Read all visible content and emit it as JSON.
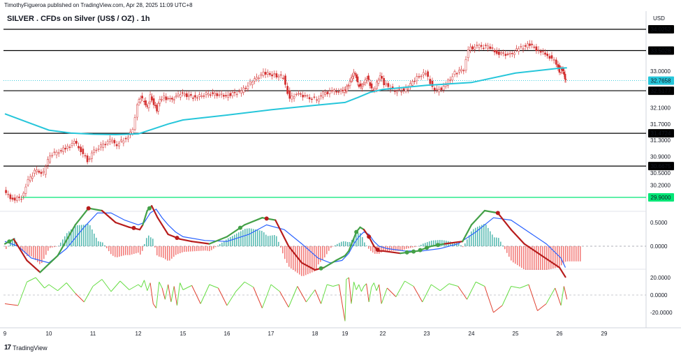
{
  "header": {
    "published": "TimothyFigueroa published on TradingView.com, Apr 28, 2025 11:09 UTC+8",
    "title": "SILVER . CFDs on Silver (US$ / OZ) . 1h",
    "currency": "USD"
  },
  "footer": {
    "brand": "TradingView",
    "brand_glyph": "17"
  },
  "colors": {
    "candle": "#d32f2f",
    "sma": "#26c6da",
    "level": "#000000",
    "support_green": "#00e676",
    "wt_green": "#43a047",
    "wt_red": "#b71c1c",
    "wt_blue": "#2962ff",
    "hist_up": "#26a69a",
    "hist_down": "#ef5350",
    "osc_green": "#66dd44",
    "osc_red": "#e04030"
  },
  "chart_data": [
    {
      "type": "line",
      "panel": "price",
      "title": "SILVER . CFDs on Silver (US$ / OZ) . 1h",
      "ylabel": "USD",
      "x_ticks": [
        "9",
        "10",
        "11",
        "12",
        "15",
        "16",
        "17",
        "18",
        "19",
        "22",
        "23",
        "24",
        "25",
        "26",
        "29"
      ],
      "y_ticks": [
        "33.0000",
        "32.1000",
        "31.7000",
        "31.3000",
        "30.9000",
        "30.5000",
        "30.2000"
      ],
      "ylim": [
        29.7,
        34.3
      ],
      "levels": [
        {
          "label": "34.0252",
          "value": 34.0252,
          "color": "#000000"
        },
        {
          "label": "33.5028",
          "value": 33.5028,
          "color": "#000000"
        },
        {
          "label": "32.5177",
          "value": 32.5177,
          "color": "#000000"
        },
        {
          "label": "31.4724",
          "value": 31.4724,
          "color": "#000000"
        },
        {
          "label": "30.6675",
          "value": 30.6675,
          "color": "#000000"
        },
        {
          "label": "29.9000",
          "value": 29.9,
          "color": "#00e676"
        }
      ],
      "last_price": {
        "label": "32.7658",
        "value": 32.7658
      },
      "price_path": [
        [
          9.0,
          30.05
        ],
        [
          9.2,
          29.85
        ],
        [
          9.4,
          29.9
        ],
        [
          9.55,
          30.3
        ],
        [
          9.7,
          30.55
        ],
        [
          9.9,
          30.5
        ],
        [
          10.05,
          30.95
        ],
        [
          10.2,
          31.0
        ],
        [
          10.4,
          31.1
        ],
        [
          10.6,
          31.25
        ],
        [
          10.75,
          31.05
        ],
        [
          10.9,
          30.8
        ],
        [
          11.05,
          31.05
        ],
        [
          11.2,
          31.15
        ],
        [
          11.4,
          31.3
        ],
        [
          11.55,
          31.2
        ],
        [
          11.75,
          31.35
        ],
        [
          11.9,
          31.55
        ],
        [
          12.0,
          32.2
        ],
        [
          12.2,
          32.35
        ],
        [
          12.45,
          32.25
        ],
        [
          12.65,
          32.1
        ],
        [
          12.85,
          32.4
        ],
        [
          13.1,
          32.2
        ],
        [
          13.3,
          32.05
        ],
        [
          13.5,
          32.3
        ],
        [
          13.8,
          32.35
        ],
        [
          14.2,
          32.3
        ],
        [
          14.6,
          32.35
        ],
        [
          14.9,
          32.45
        ],
        [
          15.3,
          32.35
        ],
        [
          15.6,
          32.45
        ],
        [
          16.0,
          32.4
        ],
        [
          16.35,
          32.5
        ],
        [
          16.6,
          32.75
        ],
        [
          16.85,
          32.95
        ],
        [
          17.1,
          32.9
        ],
        [
          17.3,
          32.85
        ],
        [
          17.45,
          32.3
        ],
        [
          17.6,
          32.45
        ],
        [
          17.9,
          32.35
        ],
        [
          18.1,
          32.3
        ],
        [
          18.3,
          32.45
        ],
        [
          18.6,
          32.5
        ],
        [
          18.9,
          32.5
        ],
        [
          19.0,
          32.5
        ],
        [
          19.2,
          32.6
        ],
        [
          19.45,
          32.75
        ],
        [
          19.65,
          32.9
        ],
        [
          19.85,
          32.95
        ],
        [
          20.05,
          32.7
        ],
        [
          20.3,
          32.6
        ],
        [
          20.55,
          32.7
        ],
        [
          20.8,
          32.85
        ],
        [
          21.05,
          32.65
        ],
        [
          21.3,
          32.5
        ],
        [
          21.6,
          32.7
        ],
        [
          21.85,
          32.9
        ],
        [
          22.05,
          32.7
        ],
        [
          22.3,
          32.5
        ],
        [
          22.55,
          32.55
        ],
        [
          22.8,
          32.85
        ],
        [
          23.0,
          32.95
        ],
        [
          23.2,
          32.5
        ],
        [
          23.4,
          32.6
        ],
        [
          23.65,
          32.95
        ],
        [
          23.85,
          33.05
        ],
        [
          23.95,
          33.55
        ],
        [
          24.15,
          33.6
        ],
        [
          24.4,
          33.6
        ],
        [
          24.6,
          33.45
        ],
        [
          24.9,
          33.4
        ],
        [
          25.1,
          33.55
        ],
        [
          25.35,
          33.65
        ],
        [
          25.55,
          33.5
        ],
        [
          25.75,
          33.4
        ],
        [
          25.95,
          33.2
        ],
        [
          26.05,
          33.0
        ],
        [
          26.2,
          33.05
        ],
        [
          26.35,
          32.9
        ],
        [
          26.45,
          32.75
        ]
      ],
      "series": [
        {
          "values_x": [
            9.0,
            9.5,
            10.0,
            10.5,
            11.0,
            11.5,
            12.0,
            13.0,
            14.0,
            15.0,
            16.0,
            17.0,
            18.0,
            19.0,
            20.0,
            21.0,
            22.0,
            23.0,
            24.0,
            25.0,
            26.0,
            26.5
          ],
          "values_y": [
            31.95,
            31.75,
            31.55,
            31.48,
            31.45,
            31.44,
            31.46,
            31.58,
            31.7,
            31.8,
            31.92,
            32.05,
            32.16,
            32.23,
            32.35,
            32.48,
            32.55,
            32.65,
            32.72,
            32.95,
            33.07,
            33.08
          ]
        }
      ]
    },
    {
      "type": "line",
      "panel": "momentum",
      "y_ticks": [
        "0.5000",
        "0.0000"
      ],
      "ylim": [
        -0.8,
        0.9
      ],
      "series": [
        {
          "values_x": [
            9.0,
            9.2,
            9.5,
            9.8,
            10.2,
            10.6,
            10.9,
            11.2,
            11.5,
            11.8,
            12.1,
            12.3,
            12.6,
            12.9,
            13.3,
            13.7,
            14.0,
            14.4,
            14.8,
            15.2,
            15.6,
            16.0,
            16.4,
            16.8,
            17.1,
            17.4,
            17.7,
            18.0,
            18.3,
            18.7,
            19.0,
            19.3,
            19.6,
            19.9,
            20.2,
            20.5,
            20.9,
            21.3,
            21.7,
            22.0,
            22.4,
            22.8,
            23.1,
            23.4,
            23.8,
            24.0,
            24.3,
            24.6,
            24.9,
            25.2,
            25.6,
            26.0,
            26.4
          ],
          "values_y": [
            0.05,
            0.15,
            -0.3,
            -0.55,
            -0.2,
            0.45,
            0.8,
            0.75,
            0.5,
            0.4,
            0.35,
            0.45,
            0.75,
            0.85,
            0.6,
            0.4,
            0.25,
            0.2,
            0.15,
            0.1,
            0.05,
            0.2,
            0.45,
            0.6,
            0.55,
            0.0,
            -0.35,
            -0.5,
            -0.45,
            -0.3,
            -0.2,
            -0.1,
            0.1,
            0.3,
            0.4,
            0.35,
            0.2,
            0.0,
            -0.1,
            -0.1,
            -0.15,
            -0.1,
            0.0,
            0.05,
            0.1,
            0.45,
            0.75,
            0.7,
            0.35,
            0.05,
            -0.2,
            -0.45,
            -0.65
          ]
        },
        {
          "values_x": [
            9.0,
            9.3,
            9.6,
            10.0,
            10.4,
            10.8,
            11.1,
            11.4,
            11.7,
            12.0,
            12.4,
            12.8,
            13.2,
            13.6,
            14.0,
            14.5,
            15.0,
            15.5,
            16.0,
            16.5,
            16.9,
            17.3,
            17.7,
            18.1,
            18.5,
            18.9,
            19.3,
            19.7,
            20.1,
            20.5,
            20.9,
            21.3,
            21.7,
            22.1,
            22.5,
            22.9,
            23.3,
            23.7,
            24.1,
            24.5,
            24.9,
            25.3,
            25.7,
            26.1,
            26.4
          ],
          "values_y": [
            0.1,
            0.0,
            -0.25,
            -0.35,
            -0.05,
            0.4,
            0.7,
            0.7,
            0.55,
            0.45,
            0.5,
            0.7,
            0.78,
            0.6,
            0.45,
            0.3,
            0.2,
            0.12,
            0.1,
            0.25,
            0.45,
            0.35,
            0.05,
            -0.25,
            -0.35,
            -0.3,
            -0.15,
            0.05,
            0.2,
            0.3,
            0.25,
            0.1,
            0.0,
            -0.05,
            -0.1,
            -0.1,
            -0.05,
            0.05,
            0.3,
            0.6,
            0.55,
            0.3,
            0.05,
            -0.25,
            -0.45
          ]
        }
      ],
      "signals_x": [
        9.1,
        10.9,
        11.9,
        12.75,
        14.6,
        16.3,
        16.9,
        18.2,
        19.9,
        20.9,
        21.6,
        22.55,
        22.7,
        22.85,
        23.0,
        23.25,
        24.6
      ]
    },
    {
      "type": "line",
      "panel": "oscillator",
      "y_ticks": [
        "20.0000",
        "0.0000",
        "-20.0000"
      ],
      "ylim": [
        -35,
        28
      ],
      "series": [
        {
          "values_x": [
            9.0,
            9.3,
            9.5,
            9.7,
            9.9,
            10.0,
            10.2,
            10.4,
            10.6,
            10.8,
            11.0,
            11.2,
            11.4,
            11.6,
            11.8,
            12.0,
            12.2,
            12.4,
            12.6,
            12.8,
            13.0,
            13.2,
            13.4,
            13.6,
            13.8,
            14.0,
            14.2,
            14.4,
            14.6,
            14.8,
            15.0,
            15.2,
            15.4,
            15.6,
            15.8,
            16.0,
            16.2,
            16.4,
            16.6,
            16.8,
            17.0,
            17.2,
            17.4,
            17.6,
            17.8,
            18.0,
            18.2,
            18.4,
            18.6,
            18.8,
            19.0,
            19.1,
            19.3,
            19.5,
            19.7,
            19.9,
            20.1,
            20.3,
            20.5,
            20.7,
            20.9,
            21.1,
            21.3,
            21.5,
            21.7,
            21.9,
            22.1,
            22.3,
            22.5,
            22.7,
            22.9,
            23.1,
            23.3,
            23.5,
            23.7,
            23.9,
            24.1,
            24.3,
            24.5,
            24.7,
            24.9,
            25.1,
            25.3,
            25.5,
            25.7,
            25.9,
            26.1,
            26.3,
            26.5
          ],
          "values_y": [
            -10,
            -12,
            15,
            20,
            8,
            12,
            5,
            14,
            2,
            -8,
            10,
            18,
            4,
            16,
            6,
            12,
            9,
            17,
            5,
            14,
            -10,
            -15,
            15,
            8,
            -5,
            12,
            -8,
            10,
            -12,
            14,
            6,
            11,
            -10,
            12,
            8,
            -12,
            4,
            15,
            9,
            -15,
            12,
            4,
            -14,
            10,
            -8,
            6,
            -10,
            12,
            10,
            12,
            -30,
            18,
            20,
            -10,
            15,
            6,
            12,
            4,
            10,
            13,
            -8,
            9,
            14,
            5,
            12,
            -10,
            8,
            -2,
            16,
            10,
            -8,
            12,
            5,
            13,
            10,
            -5,
            15,
            10,
            -20,
            -12,
            10,
            8,
            12,
            -18,
            -10,
            8,
            -12,
            10,
            -5
          ]
        }
      ]
    }
  ]
}
